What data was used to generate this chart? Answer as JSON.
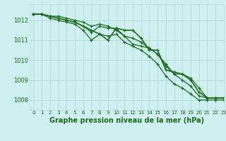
{
  "title": "Graphe pression niveau de la mer (hPa)",
  "bg_color": "#cff0f0",
  "grid_color": "#b8ddd8",
  "line_color": "#1a6b1a",
  "xlim": [
    -0.5,
    23
  ],
  "ylim": [
    1007.5,
    1012.8
  ],
  "yticks": [
    1008,
    1009,
    1010,
    1011,
    1012
  ],
  "xticks": [
    0,
    1,
    2,
    3,
    4,
    5,
    6,
    7,
    8,
    9,
    10,
    11,
    12,
    13,
    14,
    15,
    16,
    17,
    18,
    19,
    20,
    21,
    22,
    23
  ],
  "series": [
    [
      1012.3,
      1012.3,
      1012.2,
      1012.1,
      1012.0,
      1011.9,
      1011.7,
      1011.4,
      1011.7,
      1011.6,
      1011.6,
      1011.2,
      1011.1,
      1010.9,
      1010.6,
      1010.3,
      1009.7,
      1009.3,
      1009.0,
      1008.7,
      1008.2,
      1008.1,
      1008.1,
      1008.1
    ],
    [
      1012.3,
      1012.3,
      1012.1,
      1012.0,
      1011.9,
      1011.8,
      1011.5,
      1011.0,
      1011.3,
      1011.2,
      1011.3,
      1010.9,
      1010.7,
      1010.5,
      1010.2,
      1009.8,
      1009.2,
      1008.8,
      1008.6,
      1008.3,
      1008.0,
      1008.0,
      1008.0,
      1008.0
    ],
    [
      1012.3,
      1012.3,
      1012.2,
      1012.1,
      1012.0,
      1011.9,
      1011.7,
      1011.5,
      1011.3,
      1011.0,
      1011.6,
      1011.5,
      1011.5,
      1011.1,
      1010.5,
      1010.5,
      1009.5,
      1009.4,
      1009.3,
      1009.0,
      1008.4,
      1008.1,
      1008.1,
      1008.1
    ],
    [
      1012.3,
      1012.3,
      1012.2,
      1012.2,
      1012.1,
      1012.0,
      1011.9,
      1011.7,
      1011.8,
      1011.7,
      1011.5,
      1011.2,
      1010.8,
      1010.7,
      1010.6,
      1010.3,
      1009.8,
      1009.3,
      1009.3,
      1009.1,
      1008.6,
      1008.1,
      1008.1,
      1008.1
    ]
  ],
  "ylabel_fontsize": 6.0,
  "xlabel_fontsize": 7.0,
  "tick_labelsize": 5.5
}
